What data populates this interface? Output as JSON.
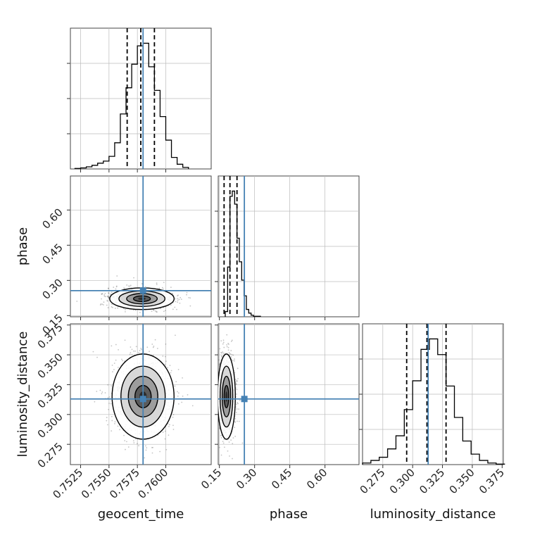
{
  "chart_data": {
    "type": "corner",
    "title": "",
    "grid": true,
    "truth_color": "#4682b4",
    "quantile_line_style": "dashed",
    "parameters": [
      {
        "name": "geocent_time",
        "truth": 0.758,
        "quantiles": [
          0.7566,
          0.7578,
          0.759
        ],
        "range": [
          0.7516,
          0.764
        ],
        "ticks": [
          0.7525,
          0.755,
          0.7575,
          0.76
        ],
        "tick_labels": [
          "0.7525",
          "0.7550",
          "0.7575",
          "0.7600"
        ]
      },
      {
        "name": "phase",
        "truth": 0.2564,
        "quantiles": [
          0.17,
          0.195,
          0.225
        ],
        "range": [
          0.145,
          0.745
        ],
        "ticks": [
          0.15,
          0.3,
          0.45,
          0.6
        ],
        "tick_labels": [
          "0.15",
          "0.30",
          "0.45",
          "0.60"
        ]
      },
      {
        "name": "luminosity_distance",
        "truth": 0.313,
        "quantiles": [
          0.295,
          0.312,
          0.328
        ],
        "range": [
          0.258,
          0.376
        ],
        "ticks": [
          0.275,
          0.3,
          0.325,
          0.35,
          0.375
        ],
        "tick_labels": [
          "0.275",
          "0.300",
          "0.325",
          "0.350",
          "0.375"
        ]
      }
    ],
    "histograms": [
      {
        "param": "geocent_time",
        "bin_edges": [
          0.752,
          0.7525,
          0.753,
          0.7535,
          0.754,
          0.7545,
          0.755,
          0.7555,
          0.756,
          0.7565,
          0.757,
          0.7575,
          0.758,
          0.7585,
          0.759,
          0.7595,
          0.76,
          0.7605,
          0.761,
          0.7615,
          0.762
        ],
        "counts": [
          1,
          2,
          4,
          7,
          11,
          15,
          24,
          50,
          105,
          155,
          200,
          235,
          240,
          195,
          150,
          100,
          55,
          22,
          9,
          3
        ]
      },
      {
        "param": "phase",
        "bin_edges": [
          0.175,
          0.185,
          0.195,
          0.205,
          0.215,
          0.225,
          0.235,
          0.245,
          0.255,
          0.265,
          0.275,
          0.285,
          0.295,
          0.305,
          0.315,
          0.325
        ],
        "counts": [
          10,
          95,
          230,
          240,
          215,
          150,
          105,
          70,
          40,
          14,
          7,
          3,
          1,
          1,
          1
        ]
      },
      {
        "param": "luminosity_distance",
        "bin_edges": [
          0.258,
          0.265,
          0.272,
          0.279,
          0.286,
          0.293,
          0.3,
          0.307,
          0.314,
          0.321,
          0.328,
          0.335,
          0.342,
          0.349,
          0.356,
          0.363,
          0.37,
          0.377
        ],
        "counts": [
          3,
          8,
          14,
          30,
          55,
          105,
          160,
          220,
          240,
          210,
          150,
          90,
          45,
          20,
          8,
          3,
          1
        ]
      }
    ],
    "contours_2d": [
      {
        "x": "geocent_time",
        "y": "phase",
        "center": [
          0.7579,
          0.222
        ],
        "sigma": [
          0.00135,
          0.022
        ]
      },
      {
        "x": "geocent_time",
        "y": "luminosity_distance",
        "center": [
          0.758,
          0.315
        ],
        "sigma": [
          0.0013,
          0.017
        ]
      },
      {
        "x": "phase",
        "y": "luminosity_distance",
        "center": [
          0.18,
          0.315
        ],
        "sigma": [
          0.018,
          0.017
        ]
      }
    ]
  }
}
